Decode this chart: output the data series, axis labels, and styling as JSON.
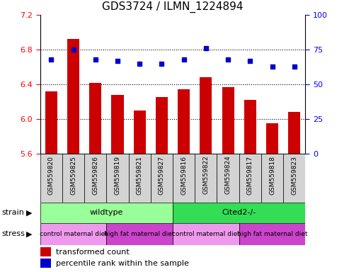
{
  "title": "GDS3724 / ILMN_1224894",
  "samples": [
    "GSM559820",
    "GSM559825",
    "GSM559826",
    "GSM559819",
    "GSM559821",
    "GSM559827",
    "GSM559816",
    "GSM559822",
    "GSM559824",
    "GSM559817",
    "GSM559818",
    "GSM559823"
  ],
  "bar_values": [
    6.32,
    6.92,
    6.42,
    6.28,
    6.1,
    6.25,
    6.34,
    6.48,
    6.37,
    6.22,
    5.95,
    6.08
  ],
  "percentile_values": [
    68,
    75,
    68,
    67,
    65,
    65,
    68,
    76,
    68,
    67,
    63,
    63
  ],
  "ymin": 5.6,
  "ymax": 7.2,
  "yticks": [
    5.6,
    6.0,
    6.4,
    6.8,
    7.2
  ],
  "y2min": 0,
  "y2max": 100,
  "y2ticks": [
    0,
    25,
    50,
    75,
    100
  ],
  "bar_color": "#cc0000",
  "dot_color": "#0000cc",
  "strain_labels": [
    {
      "label": "wildtype",
      "start": 0,
      "end": 6,
      "color": "#99ff99"
    },
    {
      "label": "Cited2-/-",
      "start": 6,
      "end": 12,
      "color": "#33dd55"
    }
  ],
  "stress_groups": [
    {
      "label": "control maternal diet",
      "start": 0,
      "end": 3,
      "color": "#ee99ee"
    },
    {
      "label": "high fat maternal diet",
      "start": 3,
      "end": 6,
      "color": "#cc44cc"
    },
    {
      "label": "control maternal diet",
      "start": 6,
      "end": 9,
      "color": "#ee99ee"
    },
    {
      "label": "high fat maternal diet",
      "start": 9,
      "end": 12,
      "color": "#cc44cc"
    }
  ],
  "grid_yticks": [
    6.0,
    6.4,
    6.8
  ],
  "tick_label_fontsize": 6.5,
  "title_fontsize": 11,
  "bar_width": 0.55
}
